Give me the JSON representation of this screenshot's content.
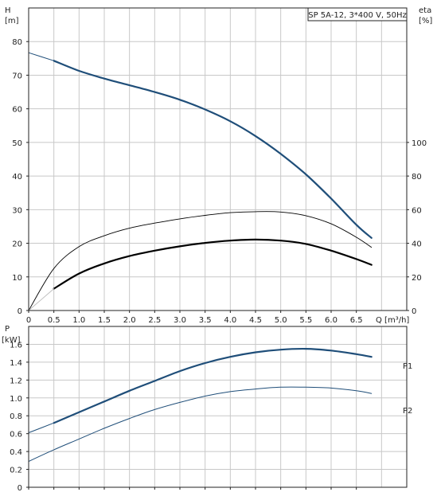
{
  "chart_data": [
    {
      "type": "line",
      "title": "SP 5A-12, 3*400 V, 50Hz",
      "xlabel": "Q [m³/h]",
      "xlim": [
        0,
        7.5
      ],
      "xticks": [
        "0",
        "0.5",
        "1.0",
        "1.5",
        "2.0",
        "2.5",
        "3.0",
        "3.5",
        "4.0",
        "4.5",
        "5.0",
        "5.5",
        "6.0",
        "6.5"
      ],
      "y_left": {
        "label_top": "H",
        "label_unit": "[m]",
        "lim": [
          0,
          90
        ],
        "ticks": [
          "0",
          "10",
          "20",
          "30",
          "40",
          "50",
          "60",
          "70",
          "80"
        ]
      },
      "y_right": {
        "label_top": "eta",
        "label_unit": "[%]",
        "lim": [
          0,
          180
        ],
        "ticks": [
          "0",
          "20",
          "40",
          "60",
          "80",
          "100"
        ]
      },
      "series": [
        {
          "axis": "left",
          "color": "#1f4e79",
          "width": 2.2,
          "x": [
            0.0,
            0.5,
            1.0,
            1.5,
            2.0,
            2.5,
            3.0,
            3.5,
            4.0,
            4.5,
            5.0,
            5.5,
            6.0,
            6.5,
            6.8
          ],
          "y": [
            76.7,
            74.3,
            71.3,
            69.0,
            67.0,
            65.0,
            62.7,
            59.8,
            56.3,
            51.9,
            46.6,
            40.5,
            33.3,
            25.5,
            21.6
          ],
          "dashed_until": 0.5
        },
        {
          "axis": "right",
          "color": "#000000",
          "width": 0.9,
          "x": [
            0.0,
            0.5,
            1.0,
            1.5,
            2.0,
            2.5,
            3.0,
            3.5,
            4.0,
            4.5,
            5.0,
            5.5,
            6.0,
            6.5,
            6.8
          ],
          "y": [
            0,
            25,
            38,
            44.5,
            49,
            52,
            54.5,
            56.6,
            58.2,
            58.8,
            58.6,
            56.4,
            51.6,
            43.6,
            37.6
          ]
        },
        {
          "axis": "right",
          "color": "#000000",
          "width": 2.2,
          "x": [
            0.5,
            1.0,
            1.5,
            2.0,
            2.5,
            3.0,
            3.5,
            4.0,
            4.5,
            5.0,
            5.5,
            6.0,
            6.5,
            6.8
          ],
          "y": [
            13,
            22,
            28,
            32.4,
            35.6,
            38.2,
            40.2,
            41.6,
            42.2,
            41.6,
            39.6,
            35.6,
            30.6,
            27.2
          ]
        },
        {
          "axis": "right",
          "color": "#bbbbbb",
          "width": 0.9,
          "x": [
            0.0,
            0.5
          ],
          "y": [
            0,
            13
          ]
        }
      ]
    },
    {
      "type": "line",
      "xlim": [
        0,
        7.5
      ],
      "y_left": {
        "label_top": "P",
        "label_unit": "[kW]",
        "lim": [
          0,
          1.8
        ],
        "ticks": [
          "0",
          "0.2",
          "0.4",
          "0.6",
          "0.8",
          "1.0",
          "1.2",
          "1.4",
          "1.6"
        ]
      },
      "series": [
        {
          "name": "P1",
          "color": "#1f4e79",
          "width": 2.2,
          "x": [
            0.0,
            0.5,
            1.0,
            1.5,
            2.0,
            2.5,
            3.0,
            3.5,
            4.0,
            4.5,
            5.0,
            5.5,
            6.0,
            6.5,
            6.8
          ],
          "y": [
            0.61,
            0.72,
            0.84,
            0.96,
            1.08,
            1.19,
            1.3,
            1.39,
            1.46,
            1.51,
            1.54,
            1.55,
            1.53,
            1.49,
            1.46
          ],
          "dashed_until": 0.5
        },
        {
          "name": "P2",
          "color": "#1f4e79",
          "width": 1.0,
          "x": [
            0.0,
            0.5,
            1.0,
            1.5,
            2.0,
            2.5,
            3.0,
            3.5,
            4.0,
            4.5,
            5.0,
            5.5,
            6.0,
            6.5,
            6.8
          ],
          "y": [
            0.29,
            0.42,
            0.54,
            0.66,
            0.77,
            0.87,
            0.95,
            1.02,
            1.07,
            1.1,
            1.12,
            1.12,
            1.11,
            1.08,
            1.05
          ]
        }
      ]
    }
  ]
}
